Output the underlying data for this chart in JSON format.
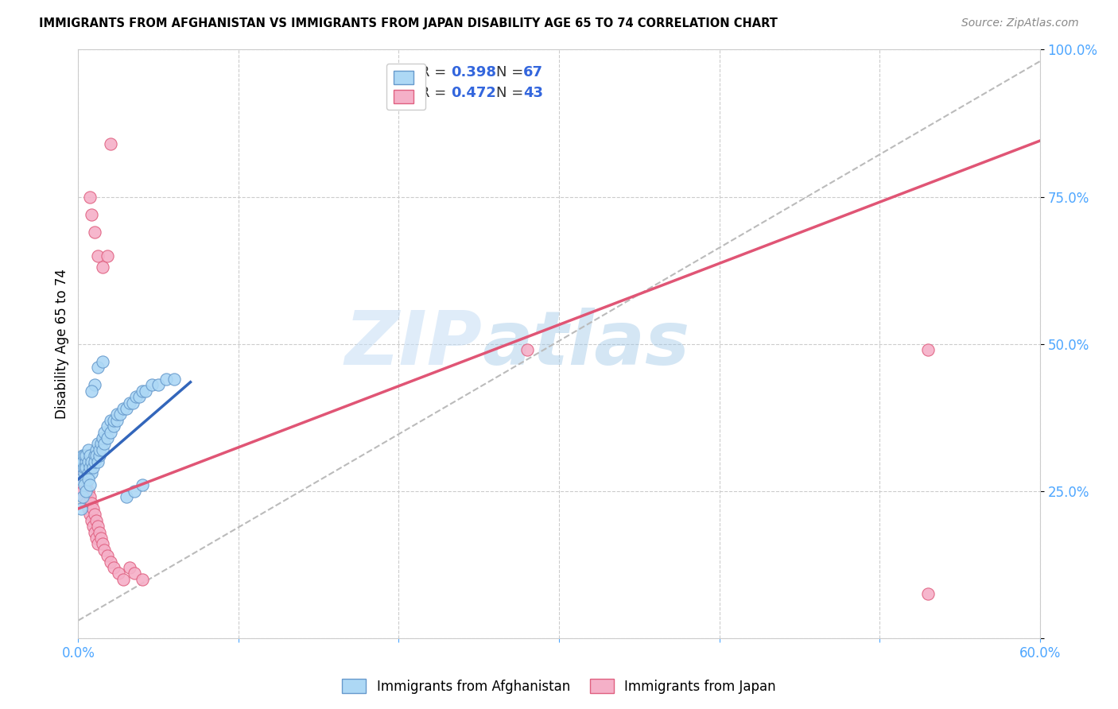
{
  "title": "IMMIGRANTS FROM AFGHANISTAN VS IMMIGRANTS FROM JAPAN DISABILITY AGE 65 TO 74 CORRELATION CHART",
  "source": "Source: ZipAtlas.com",
  "ylabel": "Disability Age 65 to 74",
  "xlim": [
    0.0,
    0.6
  ],
  "ylim": [
    0.0,
    1.0
  ],
  "xticks": [
    0.0,
    0.1,
    0.2,
    0.3,
    0.4,
    0.5,
    0.6
  ],
  "xtick_labels": [
    "0.0%",
    "",
    "",
    "",
    "",
    "",
    "60.0%"
  ],
  "yticks": [
    0.0,
    0.25,
    0.5,
    0.75,
    1.0
  ],
  "ytick_labels": [
    "",
    "25.0%",
    "50.0%",
    "75.0%",
    "100.0%"
  ],
  "tick_color": "#4da6ff",
  "background_color": "#ffffff",
  "grid_color": "#cccccc",
  "watermark_zip": "ZIP",
  "watermark_atlas": "atlas",
  "afghanistan_color": "#add8f5",
  "japan_color": "#f5b0c8",
  "afghanistan_edge_color": "#6699cc",
  "japan_edge_color": "#e06080",
  "afghanistan_line_color": "#3366bb",
  "japan_line_color": "#e05575",
  "diagonal_color": "#bbbbbb",
  "afghanistan_line": [
    [
      0.0,
      0.27
    ],
    [
      0.07,
      0.435
    ]
  ],
  "japan_line": [
    [
      0.0,
      0.22
    ],
    [
      0.6,
      0.845
    ]
  ],
  "diagonal_line": [
    [
      0.0,
      0.03
    ],
    [
      0.6,
      0.98
    ]
  ],
  "afghanistan_scatter": [
    [
      0.002,
      0.27
    ],
    [
      0.003,
      0.29
    ],
    [
      0.003,
      0.31
    ],
    [
      0.003,
      0.3
    ],
    [
      0.004,
      0.28
    ],
    [
      0.004,
      0.31
    ],
    [
      0.004,
      0.29
    ],
    [
      0.005,
      0.3
    ],
    [
      0.005,
      0.27
    ],
    [
      0.005,
      0.29
    ],
    [
      0.005,
      0.31
    ],
    [
      0.006,
      0.28
    ],
    [
      0.006,
      0.3
    ],
    [
      0.006,
      0.32
    ],
    [
      0.007,
      0.29
    ],
    [
      0.007,
      0.31
    ],
    [
      0.008,
      0.28
    ],
    [
      0.008,
      0.3
    ],
    [
      0.009,
      0.29
    ],
    [
      0.01,
      0.31
    ],
    [
      0.01,
      0.3
    ],
    [
      0.011,
      0.32
    ],
    [
      0.011,
      0.31
    ],
    [
      0.012,
      0.3
    ],
    [
      0.012,
      0.33
    ],
    [
      0.013,
      0.31
    ],
    [
      0.013,
      0.32
    ],
    [
      0.014,
      0.33
    ],
    [
      0.015,
      0.32
    ],
    [
      0.015,
      0.34
    ],
    [
      0.016,
      0.33
    ],
    [
      0.016,
      0.35
    ],
    [
      0.018,
      0.34
    ],
    [
      0.018,
      0.36
    ],
    [
      0.02,
      0.35
    ],
    [
      0.02,
      0.37
    ],
    [
      0.022,
      0.36
    ],
    [
      0.022,
      0.37
    ],
    [
      0.024,
      0.37
    ],
    [
      0.024,
      0.38
    ],
    [
      0.026,
      0.38
    ],
    [
      0.028,
      0.39
    ],
    [
      0.03,
      0.39
    ],
    [
      0.032,
      0.4
    ],
    [
      0.034,
      0.4
    ],
    [
      0.036,
      0.41
    ],
    [
      0.038,
      0.41
    ],
    [
      0.04,
      0.42
    ],
    [
      0.042,
      0.42
    ],
    [
      0.046,
      0.43
    ],
    [
      0.05,
      0.43
    ],
    [
      0.055,
      0.44
    ],
    [
      0.06,
      0.44
    ],
    [
      0.012,
      0.46
    ],
    [
      0.015,
      0.47
    ],
    [
      0.002,
      0.22
    ],
    [
      0.003,
      0.24
    ],
    [
      0.004,
      0.26
    ],
    [
      0.005,
      0.25
    ],
    [
      0.006,
      0.27
    ],
    [
      0.007,
      0.26
    ],
    [
      0.01,
      0.43
    ],
    [
      0.008,
      0.42
    ],
    [
      0.03,
      0.24
    ],
    [
      0.035,
      0.25
    ],
    [
      0.04,
      0.26
    ]
  ],
  "japan_scatter": [
    [
      0.002,
      0.28
    ],
    [
      0.003,
      0.26
    ],
    [
      0.003,
      0.25
    ],
    [
      0.004,
      0.27
    ],
    [
      0.004,
      0.24
    ],
    [
      0.005,
      0.26
    ],
    [
      0.005,
      0.23
    ],
    [
      0.006,
      0.25
    ],
    [
      0.006,
      0.22
    ],
    [
      0.007,
      0.24
    ],
    [
      0.007,
      0.21
    ],
    [
      0.008,
      0.23
    ],
    [
      0.008,
      0.2
    ],
    [
      0.009,
      0.22
    ],
    [
      0.009,
      0.19
    ],
    [
      0.01,
      0.21
    ],
    [
      0.01,
      0.18
    ],
    [
      0.011,
      0.2
    ],
    [
      0.011,
      0.17
    ],
    [
      0.012,
      0.19
    ],
    [
      0.012,
      0.16
    ],
    [
      0.013,
      0.18
    ],
    [
      0.014,
      0.17
    ],
    [
      0.015,
      0.16
    ],
    [
      0.016,
      0.15
    ],
    [
      0.018,
      0.14
    ],
    [
      0.02,
      0.13
    ],
    [
      0.022,
      0.12
    ],
    [
      0.025,
      0.11
    ],
    [
      0.028,
      0.1
    ],
    [
      0.032,
      0.12
    ],
    [
      0.035,
      0.11
    ],
    [
      0.04,
      0.1
    ],
    [
      0.007,
      0.75
    ],
    [
      0.008,
      0.72
    ],
    [
      0.01,
      0.69
    ],
    [
      0.012,
      0.65
    ],
    [
      0.015,
      0.63
    ],
    [
      0.018,
      0.65
    ],
    [
      0.02,
      0.84
    ],
    [
      0.28,
      0.49
    ],
    [
      0.53,
      0.49
    ],
    [
      0.53,
      0.075
    ]
  ]
}
